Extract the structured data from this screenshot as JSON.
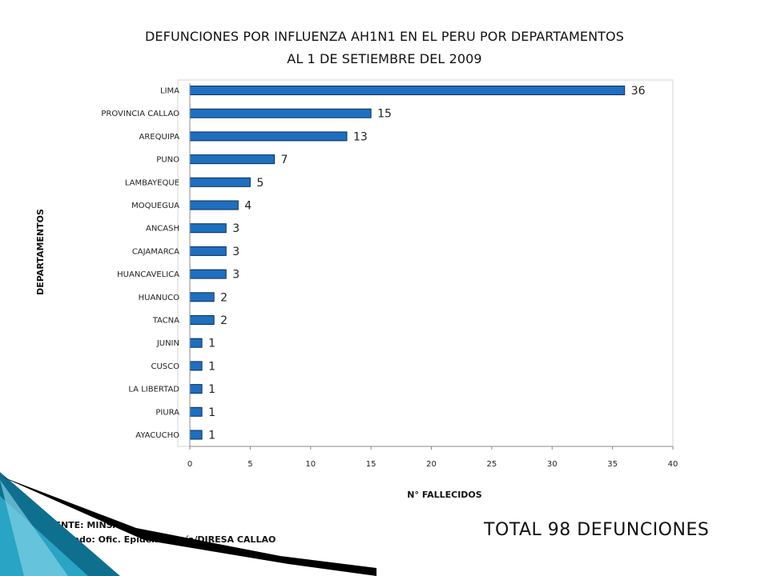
{
  "title": {
    "line1": "DEFUNCIONES POR INFLUENZA AH1N1  EN EL PERU POR DEPARTAMENTOS",
    "line2": "AL  1 DE SETIEMBRE DEL 2009"
  },
  "chart_data": {
    "type": "bar",
    "orientation": "horizontal",
    "categories": [
      "LIMA",
      "PROVINCIA CALLAO",
      "AREQUIPA",
      "PUNO",
      "LAMBAYEQUE",
      "MOQUEGUA",
      "ANCASH",
      "CAJAMARCA",
      "HUANCAVELICA",
      "HUANUCO",
      "TACNA",
      "JUNIN",
      "CUSCO",
      "LA LIBERTAD",
      "PIURA",
      "AYACUCHO"
    ],
    "values": [
      36,
      15,
      13,
      7,
      5,
      4,
      3,
      3,
      3,
      2,
      2,
      1,
      1,
      1,
      1,
      1
    ],
    "xlabel": "N° FALLECIDOS",
    "ylabel": "DEPARTAMENTOS",
    "xlim": [
      0,
      40
    ],
    "xticks": [
      0,
      5,
      10,
      15,
      20,
      25,
      30,
      35,
      40
    ],
    "grid": false,
    "legend": "none",
    "bar_color": "#1f6fbf",
    "bar_edge_color": "#0a2d5a"
  },
  "footer": {
    "source": "FUENTE: MINSA",
    "credit": "Elaborado: Ofic. Epidemiología/DIRESA CALLAO",
    "total": "TOTAL 98 DEFUNCIONES"
  },
  "decoration": {
    "colors": [
      "#0f6f8f",
      "#2aa4c4",
      "#7fd0e6",
      "#000000"
    ]
  }
}
